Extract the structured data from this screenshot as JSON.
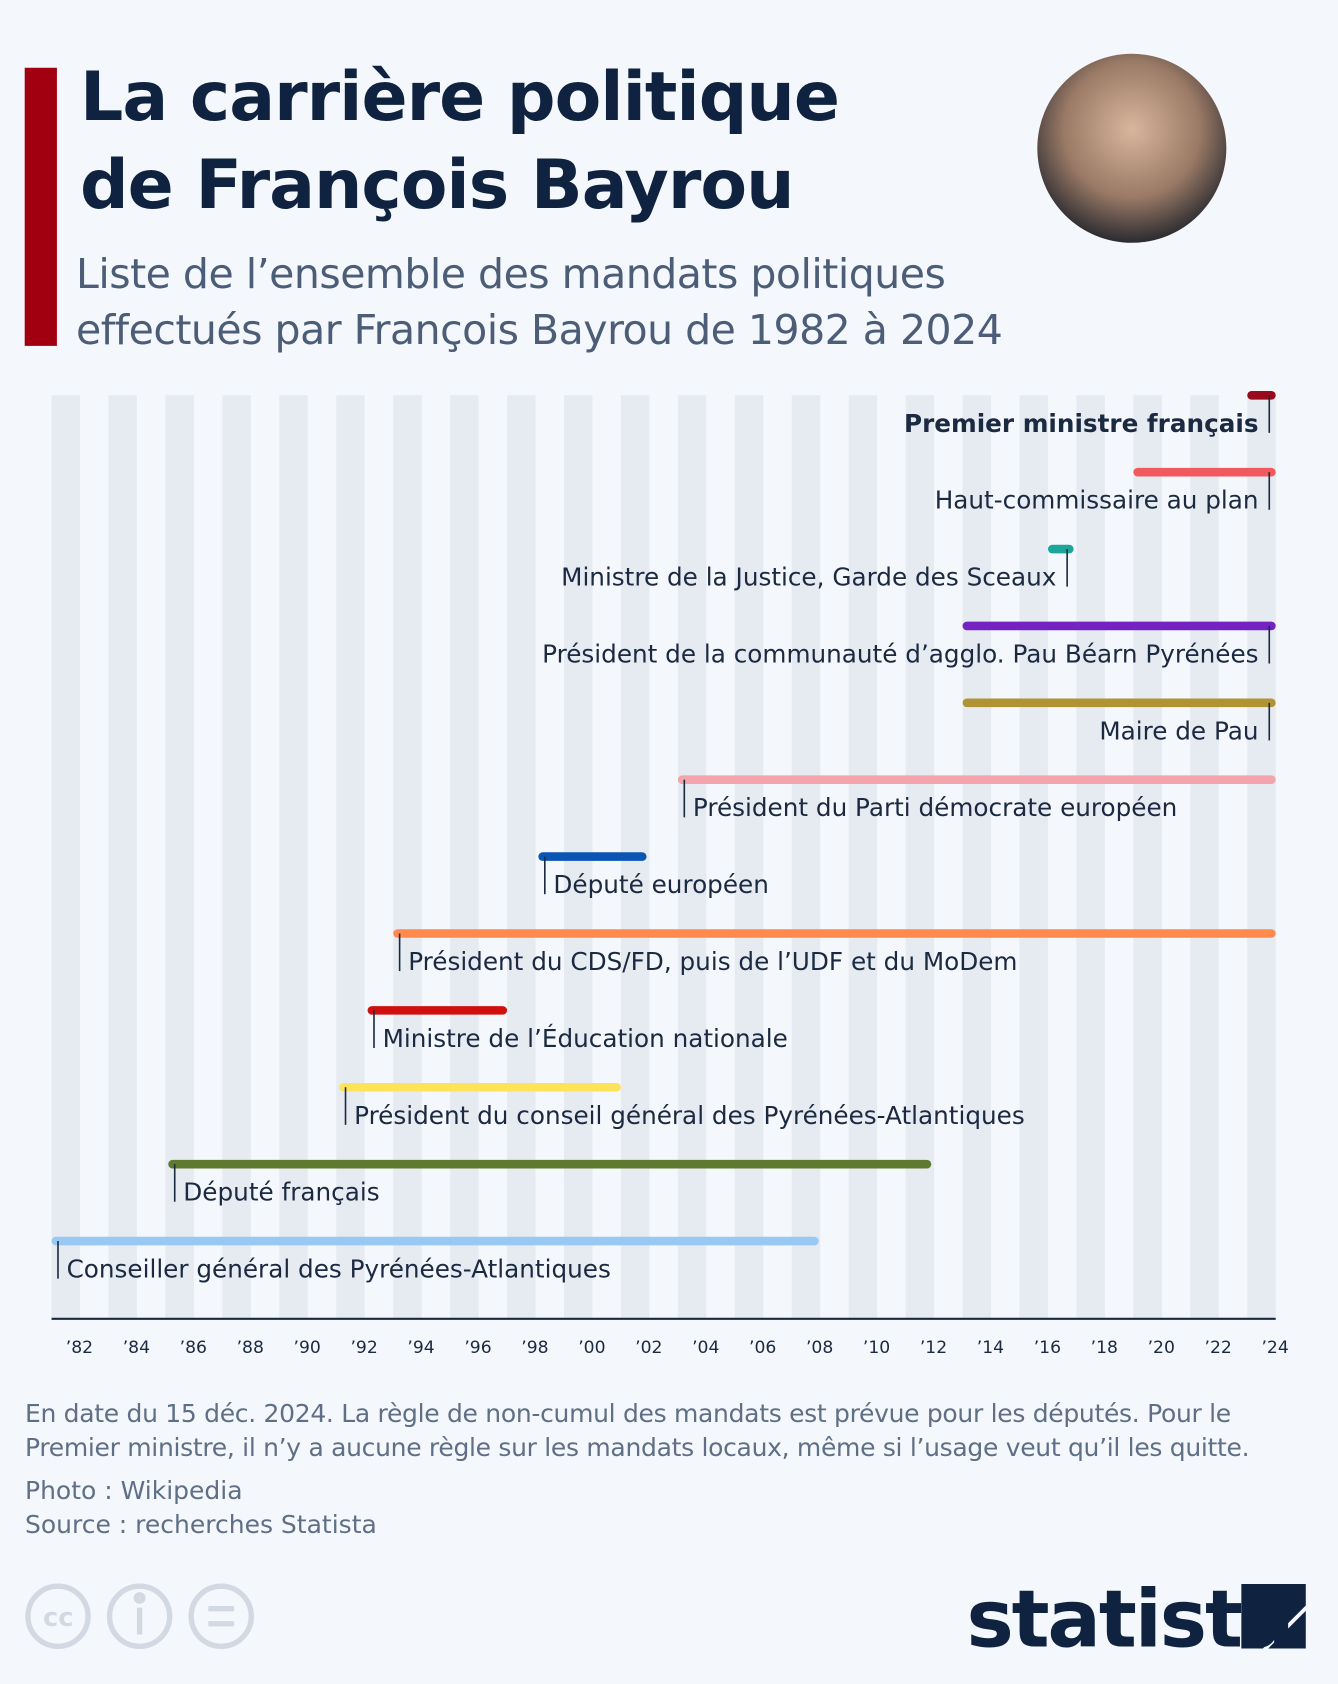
{
  "chart_data": {
    "type": "timeline",
    "title": "La carrière politique de François Bayrou",
    "subtitle": "Liste de l’ensemble des mandats politiques effectués par François Bayrou de 1982 à 2024",
    "xlim": [
      1981.5,
      2024.5
    ],
    "xticks": [
      {
        "value": 1982,
        "label": "’82"
      },
      {
        "value": 1984,
        "label": "’84"
      },
      {
        "value": 1986,
        "label": "’86"
      },
      {
        "value": 1988,
        "label": "’88"
      },
      {
        "value": 1990,
        "label": "’90"
      },
      {
        "value": 1992,
        "label": "’92"
      },
      {
        "value": 1994,
        "label": "’94"
      },
      {
        "value": 1996,
        "label": "’96"
      },
      {
        "value": 1998,
        "label": "’98"
      },
      {
        "value": 2000,
        "label": "’00"
      },
      {
        "value": 2002,
        "label": "’02"
      },
      {
        "value": 2004,
        "label": "’04"
      },
      {
        "value": 2006,
        "label": "’06"
      },
      {
        "value": 2008,
        "label": "’08"
      },
      {
        "value": 2010,
        "label": "’10"
      },
      {
        "value": 2012,
        "label": "’12"
      },
      {
        "value": 2014,
        "label": "’14"
      },
      {
        "value": 2016,
        "label": "’16"
      },
      {
        "value": 2018,
        "label": "’18"
      },
      {
        "value": 2020,
        "label": "’20"
      },
      {
        "value": 2022,
        "label": "’22"
      },
      {
        "value": 2024,
        "label": "’24"
      }
    ],
    "tasks": [
      {
        "name": "Premier ministre français",
        "start": 2023.5,
        "end": 2024.5,
        "color": "#9b0a1a"
      },
      {
        "name": "Haut-commissaire au plan",
        "start": 2019.5,
        "end": 2024.5,
        "color": "#f05a5f"
      },
      {
        "name": "Ministre de la Justice, Garde des Sceaux",
        "start": 2016.5,
        "end": 2017.4,
        "color": "#1aa79a"
      },
      {
        "name": "Président de la communauté d’agglo. Pau Béarn Pyrénées",
        "start": 2013.5,
        "end": 2024.5,
        "color": "#7422c2"
      },
      {
        "name": "Maire de Pau",
        "start": 2013.5,
        "end": 2024.5,
        "color": "#b09434"
      },
      {
        "name": "Président du Parti démocrate européen",
        "start": 2003.5,
        "end": 2024.5,
        "color": "#f4a4ab"
      },
      {
        "name": "Député européen",
        "start": 1998.6,
        "end": 2002.4,
        "color": "#0a55b4"
      },
      {
        "name": "Président du CDS/FD, puis de l’UDF et du MoDem",
        "start": 1993.5,
        "end": 2024.5,
        "color": "#ff8a4c"
      },
      {
        "name": "Ministre de l’Éducation nationale",
        "start": 1992.6,
        "end": 1997.5,
        "color": "#d0100f"
      },
      {
        "name": "Président du conseil général des Pyrénées-Atlantiques",
        "start": 1991.6,
        "end": 2001.5,
        "color": "#fde35a"
      },
      {
        "name": "Député français",
        "start": 1985.6,
        "end": 2012.4,
        "color": "#5d7a2e"
      },
      {
        "name": "Conseiller général des Pyrénées-Atlantiques",
        "start": 1981.5,
        "end": 2008.45,
        "color": "#99c8f5"
      }
    ],
    "notes": [
      "En date du 15 déc. 2024. La règle de non-cumul des mandats est prévue pour les députés. Pour le Premier ministre, il n’y a aucune règle sur les mandats locaux, même si l’usage veut qu’il les quitte."
    ],
    "photo_credit": "Photo : Wikipedia",
    "source": "Source : recherches Statista",
    "brand": "statista"
  }
}
